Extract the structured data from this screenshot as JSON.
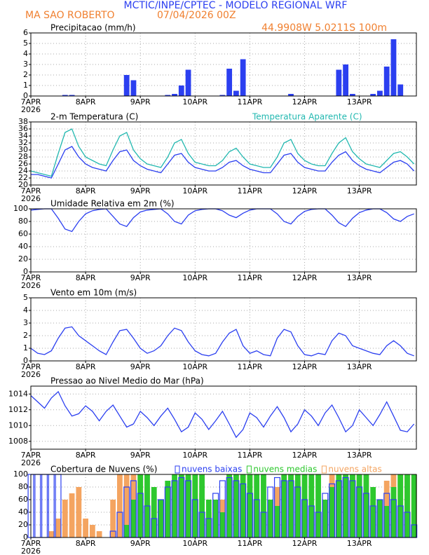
{
  "header": {
    "title": "MCTIC/INPE/CPTEC - MODELO REGIONAL WRF",
    "location": "MA SAO ROBERTO",
    "run": "07/04/2026 00Z",
    "coords": "44.9908W 5.0211S 100m"
  },
  "time_axis": {
    "xlim": [
      0,
      169
    ],
    "year": "2026",
    "xticks": [
      {
        "value": 0,
        "label": "7APR"
      },
      {
        "value": 24,
        "label": "8APR"
      },
      {
        "value": 48,
        "label": "9APR"
      },
      {
        "value": 72,
        "label": "10APR"
      },
      {
        "value": 96,
        "label": "11APR"
      },
      {
        "value": 120,
        "label": "12APR"
      },
      {
        "value": 144,
        "label": "13APR"
      }
    ],
    "x": [
      0,
      3,
      6,
      9,
      12,
      15,
      18,
      21,
      24,
      27,
      30,
      33,
      36,
      39,
      42,
      45,
      48,
      51,
      54,
      57,
      60,
      63,
      66,
      69,
      72,
      75,
      78,
      81,
      84,
      87,
      90,
      93,
      96,
      99,
      102,
      105,
      108,
      111,
      114,
      117,
      120,
      123,
      126,
      129,
      132,
      135,
      138,
      141,
      144,
      147,
      150,
      153,
      156,
      159,
      162,
      165,
      168
    ]
  },
  "chart_data": [
    {
      "type": "bar",
      "title": "Precipitacao (mm/h)",
      "ylim": [
        0,
        6
      ],
      "yticks": [
        0,
        1,
        2,
        3,
        4,
        5,
        6
      ],
      "grid": true,
      "series": [
        {
          "color": "#2b3ff0",
          "values": [
            0,
            0,
            0,
            0,
            0,
            0.1,
            0.1,
            0,
            0,
            0,
            0,
            0,
            0,
            0,
            2,
            1.5,
            0,
            0,
            0,
            0,
            0.1,
            0.2,
            1,
            2.5,
            0,
            0,
            0,
            0,
            0.1,
            2.6,
            0.5,
            3.5,
            0,
            0,
            0,
            0,
            0,
            0,
            0.2,
            0,
            0,
            0,
            0,
            0,
            0,
            2.5,
            3,
            0.2,
            0,
            0,
            0.2,
            0.5,
            2.8,
            5.4,
            1.1,
            0,
            0
          ]
        }
      ]
    },
    {
      "type": "line",
      "title": "2-m Temperatura (C)",
      "ylim": [
        20,
        38
      ],
      "yticks": [
        20,
        22,
        24,
        26,
        28,
        30,
        32,
        34,
        36,
        38
      ],
      "grid": true,
      "series": [
        {
          "color": "#2b3ff0",
          "values": [
            23,
            23,
            22.5,
            22,
            26,
            30,
            31,
            28,
            26,
            25,
            24.5,
            24,
            27,
            29.5,
            30,
            27,
            25.5,
            24.5,
            24,
            23.5,
            26,
            28.5,
            29,
            26.5,
            25,
            24.5,
            24,
            24,
            25,
            26.5,
            27,
            25.5,
            24.5,
            24,
            23.5,
            23.5,
            26,
            28.5,
            29,
            26.5,
            25,
            24.5,
            24,
            24,
            26.5,
            28.5,
            29.5,
            27,
            25.5,
            24.5,
            24,
            23.5,
            25,
            26.5,
            27,
            26,
            24
          ]
        },
        {
          "name": "Temperatura Aparente (C)",
          "color": "#22b8b0",
          "values": [
            24,
            23.5,
            23,
            22.5,
            29,
            35,
            36,
            31,
            28,
            27,
            26,
            25.5,
            30,
            34,
            35,
            30,
            27.5,
            26,
            25.5,
            25,
            28,
            32,
            33,
            29,
            26.5,
            26,
            25.5,
            25.5,
            27,
            29.5,
            30.5,
            28,
            26,
            25.5,
            25,
            25,
            28,
            32,
            33,
            29,
            27,
            26,
            25.5,
            25.5,
            29,
            32,
            33.5,
            29.5,
            27.5,
            26,
            25.5,
            25,
            27,
            29,
            29.5,
            28,
            26
          ]
        }
      ]
    },
    {
      "type": "line",
      "title": "Umidade Relativa em 2m (%)",
      "ylim": [
        0,
        100
      ],
      "yticks": [
        0,
        20,
        40,
        60,
        80,
        100
      ],
      "grid": true,
      "series": [
        {
          "color": "#2b3ff0",
          "values": [
            98,
            99,
            100,
            100,
            85,
            68,
            64,
            80,
            92,
            97,
            99,
            100,
            88,
            76,
            72,
            86,
            95,
            98,
            99,
            100,
            92,
            80,
            76,
            90,
            97,
            99,
            100,
            100,
            97,
            90,
            86,
            93,
            98,
            100,
            100,
            100,
            92,
            80,
            76,
            88,
            96,
            99,
            100,
            100,
            90,
            78,
            72,
            85,
            94,
            98,
            100,
            100,
            94,
            84,
            80,
            88,
            92
          ]
        }
      ]
    },
    {
      "type": "line",
      "title": "Vento em 10m (m/s)",
      "ylim": [
        0,
        5
      ],
      "yticks": [
        0,
        1,
        2,
        3,
        4,
        5
      ],
      "grid": true,
      "series": [
        {
          "color": "#2b3ff0",
          "values": [
            1,
            0.6,
            0.5,
            0.8,
            1.8,
            2.6,
            2.7,
            2,
            1.6,
            1.2,
            0.8,
            0.5,
            1.5,
            2.4,
            2.5,
            1.8,
            1,
            0.6,
            0.8,
            1.2,
            2,
            2.6,
            2.4,
            1.5,
            0.8,
            0.5,
            0.4,
            0.6,
            1.5,
            2.2,
            2.5,
            1.2,
            0.6,
            0.8,
            0.5,
            0.4,
            1.8,
            2.5,
            2.3,
            1.2,
            0.5,
            0.4,
            0.6,
            0.5,
            1.6,
            2.2,
            2,
            1.2,
            1,
            0.8,
            0.6,
            0.5,
            1.2,
            1.6,
            1.2,
            0.6,
            0.4
          ]
        }
      ]
    },
    {
      "type": "line",
      "title": "Pressao ao Nivel Medio do Mar (hPa)",
      "ylim": [
        1007,
        1015
      ],
      "yticks": [
        1008,
        1010,
        1012,
        1014
      ],
      "grid": true,
      "series": [
        {
          "color": "#2b3ff0",
          "values": [
            1013.8,
            1013,
            1012.2,
            1013.5,
            1014.3,
            1012.5,
            1011.2,
            1011.5,
            1012.5,
            1011.8,
            1010.6,
            1011.8,
            1012.6,
            1011.2,
            1009.8,
            1010.2,
            1011.8,
            1011,
            1010,
            1011.2,
            1012.2,
            1010.8,
            1009.2,
            1009.8,
            1011.6,
            1010.8,
            1009.5,
            1010.6,
            1011.8,
            1010.2,
            1008.5,
            1009.5,
            1011.6,
            1011,
            1009.8,
            1011.2,
            1012.4,
            1011,
            1009.2,
            1010.2,
            1012,
            1011.2,
            1010,
            1011.6,
            1012.6,
            1011,
            1009.2,
            1010,
            1012,
            1011,
            1010,
            1011.4,
            1013,
            1011.2,
            1009.4,
            1009.2,
            1010.2
          ]
        }
      ]
    },
    {
      "type": "bar",
      "title": "Cobertura de Nuvens (%)",
      "ylim": [
        0,
        100
      ],
      "yticks": [
        0,
        20,
        40,
        60,
        80,
        100
      ],
      "grid": true,
      "series": [
        {
          "name": "nuvens altas",
          "color": "#f4a460",
          "values": [
            0,
            0,
            0,
            10,
            30,
            60,
            70,
            80,
            30,
            20,
            10,
            0,
            60,
            100,
            100,
            100,
            100,
            80,
            60,
            40,
            60,
            90,
            100,
            100,
            100,
            70,
            40,
            30,
            60,
            100,
            100,
            100,
            100,
            50,
            20,
            30,
            80,
            100,
            100,
            90,
            60,
            40,
            30,
            60,
            100,
            100,
            100,
            100,
            100,
            100,
            60,
            40,
            90,
            100,
            100,
            100,
            100
          ]
        },
        {
          "name": "nuvens medias",
          "color": "#2ec82e",
          "values": [
            0,
            0,
            0,
            0,
            0,
            0,
            0,
            0,
            0,
            0,
            0,
            0,
            0,
            0,
            20,
            60,
            100,
            100,
            80,
            60,
            90,
            100,
            100,
            100,
            100,
            100,
            60,
            60,
            40,
            100,
            100,
            100,
            100,
            100,
            100,
            60,
            50,
            100,
            100,
            100,
            100,
            100,
            100,
            60,
            80,
            100,
            100,
            100,
            100,
            100,
            80,
            60,
            50,
            80,
            100,
            100,
            100
          ]
        },
        {
          "name": "nuvens baixas",
          "color": "#2b3ff0",
          "outline": true,
          "values": [
            100,
            100,
            100,
            100,
            100,
            0,
            0,
            0,
            0,
            0,
            0,
            0,
            10,
            40,
            80,
            90,
            70,
            50,
            30,
            60,
            80,
            90,
            95,
            90,
            60,
            40,
            30,
            70,
            90,
            95,
            90,
            85,
            70,
            60,
            40,
            80,
            95,
            90,
            90,
            80,
            60,
            50,
            40,
            70,
            85,
            90,
            95,
            90,
            80,
            70,
            50,
            60,
            70,
            60,
            50,
            40,
            20
          ]
        }
      ]
    }
  ]
}
